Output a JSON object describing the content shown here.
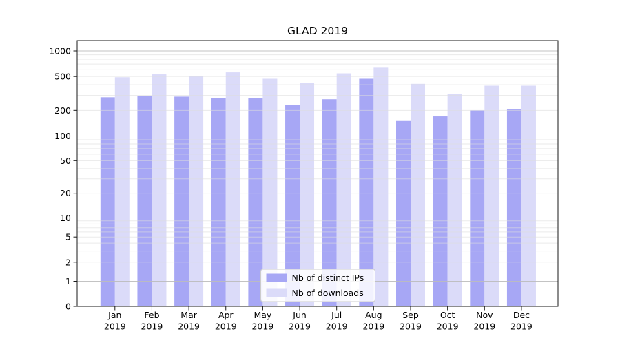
{
  "figure": {
    "background": "#ffffff"
  },
  "chart_data": {
    "type": "bar",
    "title": "GLAD 2019",
    "categories": [
      "Jan 2019",
      "Feb 2019",
      "Mar 2019",
      "Apr 2019",
      "May 2019",
      "Jun 2019",
      "Jul 2019",
      "Aug 2019",
      "Sep 2019",
      "Oct 2019",
      "Nov 2019",
      "Dec 2019"
    ],
    "series": [
      {
        "name": "Nb of distinct IPs",
        "color": "#a7a7f5",
        "values": [
          285,
          295,
          290,
          280,
          280,
          230,
          270,
          470,
          150,
          170,
          200,
          205
        ]
      },
      {
        "name": "Nb of downloads",
        "color": "#dbdbf9",
        "values": [
          490,
          530,
          510,
          560,
          470,
          420,
          545,
          635,
          410,
          310,
          390,
          390
        ]
      }
    ],
    "xlabel": "",
    "ylabel": "",
    "yscale": "symlog",
    "ylim": [
      0,
      1320
    ],
    "yticks": [
      0,
      1,
      2,
      5,
      10,
      20,
      50,
      100,
      200,
      500,
      1000
    ],
    "grid": true,
    "legend_position": "lower center"
  },
  "style_colors": {
    "bar_distinct_ips": "#a7a7f5",
    "bar_downloads": "#dbdbf9",
    "grid_major": "#bdbdbd",
    "grid_minor": "#dddddd",
    "axis": "#1a1a1a",
    "text": "#000000",
    "legend_border": "#cccccc",
    "legend_background": "#ffffff"
  }
}
